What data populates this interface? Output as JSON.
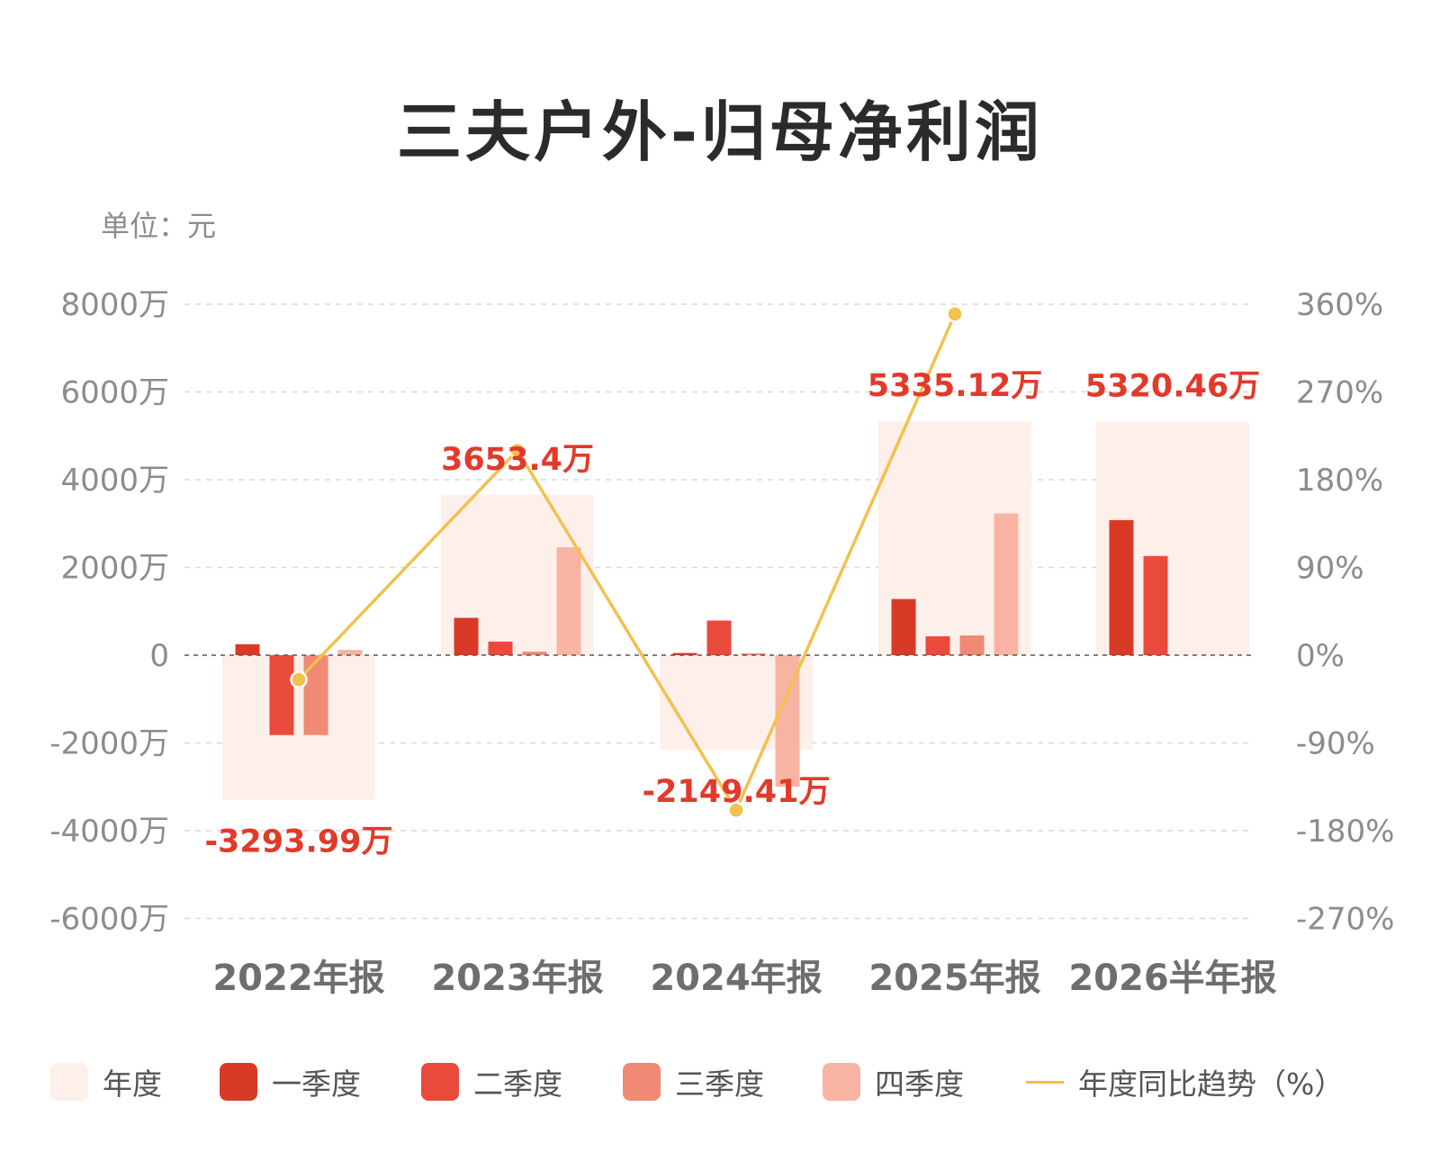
{
  "title": "三夫户外-归母净利润",
  "unit": "单位：元",
  "colors": {
    "annual": "#fdefea",
    "q1": "#d93a26",
    "q2": "#ea4a3b",
    "q3": "#f08a74",
    "q4": "#f9b3a2",
    "trend": "#f2c14e",
    "label": "#e23a2a",
    "axis": "#8c8c8c",
    "grid": "#d9d9d9"
  },
  "legend": [
    {
      "key": "annual",
      "label": "年度",
      "shape": "swatch"
    },
    {
      "key": "q1",
      "label": "一季度",
      "shape": "swatch"
    },
    {
      "key": "q2",
      "label": "二季度",
      "shape": "swatch"
    },
    {
      "key": "q3",
      "label": "三季度",
      "shape": "swatch"
    },
    {
      "key": "q4",
      "label": "四季度",
      "shape": "swatch"
    },
    {
      "key": "trend",
      "label": "年度同比趋势（%）",
      "shape": "line"
    }
  ],
  "chart_data": {
    "type": "bar",
    "title": "三夫户外-归母净利润",
    "unit": "单位：元",
    "categories": [
      "2022年报",
      "2023年报",
      "2024年报",
      "2025年报",
      "2026半年报"
    ],
    "y_left": {
      "min": -6000,
      "max": 8000,
      "step": 2000,
      "tick_labels": [
        "8000万",
        "6000万",
        "4000万",
        "2000万",
        "0",
        "-2000万",
        "-4000万",
        "-6000万"
      ],
      "tick_values": [
        8000,
        6000,
        4000,
        2000,
        0,
        -2000,
        -4000,
        -6000
      ]
    },
    "y_right": {
      "min": -270,
      "max": 360,
      "tick_labels": [
        "360%",
        "270%",
        "180%",
        "90%",
        "0%",
        "-90%",
        "-180%",
        "-270%"
      ],
      "tick_values": [
        360,
        270,
        180,
        90,
        0,
        -90,
        -180,
        -270
      ]
    },
    "grid": true,
    "annual": {
      "name": "年度",
      "values": [
        -3293.99,
        3653.4,
        -2149.41,
        5335.12,
        5320.46
      ],
      "labels": [
        "-3293.99万",
        "3653.4万",
        "-2149.41万",
        "5335.12万",
        "5320.46万"
      ]
    },
    "series": [
      {
        "name": "一季度",
        "key": "q1",
        "values": [
          250,
          850,
          50,
          1280,
          3080
        ]
      },
      {
        "name": "二季度",
        "key": "q2",
        "values": [
          -1820,
          310,
          790,
          430,
          2260
        ]
      },
      {
        "name": "三季度",
        "key": "q3",
        "values": [
          -1820,
          80,
          40,
          450,
          null
        ]
      },
      {
        "name": "四季度",
        "key": "q4",
        "values": [
          120,
          2460,
          -3000,
          3230,
          null
        ]
      }
    ],
    "trend": {
      "name": "年度同比趋势（%）",
      "values": [
        -25,
        210,
        -159,
        350,
        null
      ]
    }
  }
}
